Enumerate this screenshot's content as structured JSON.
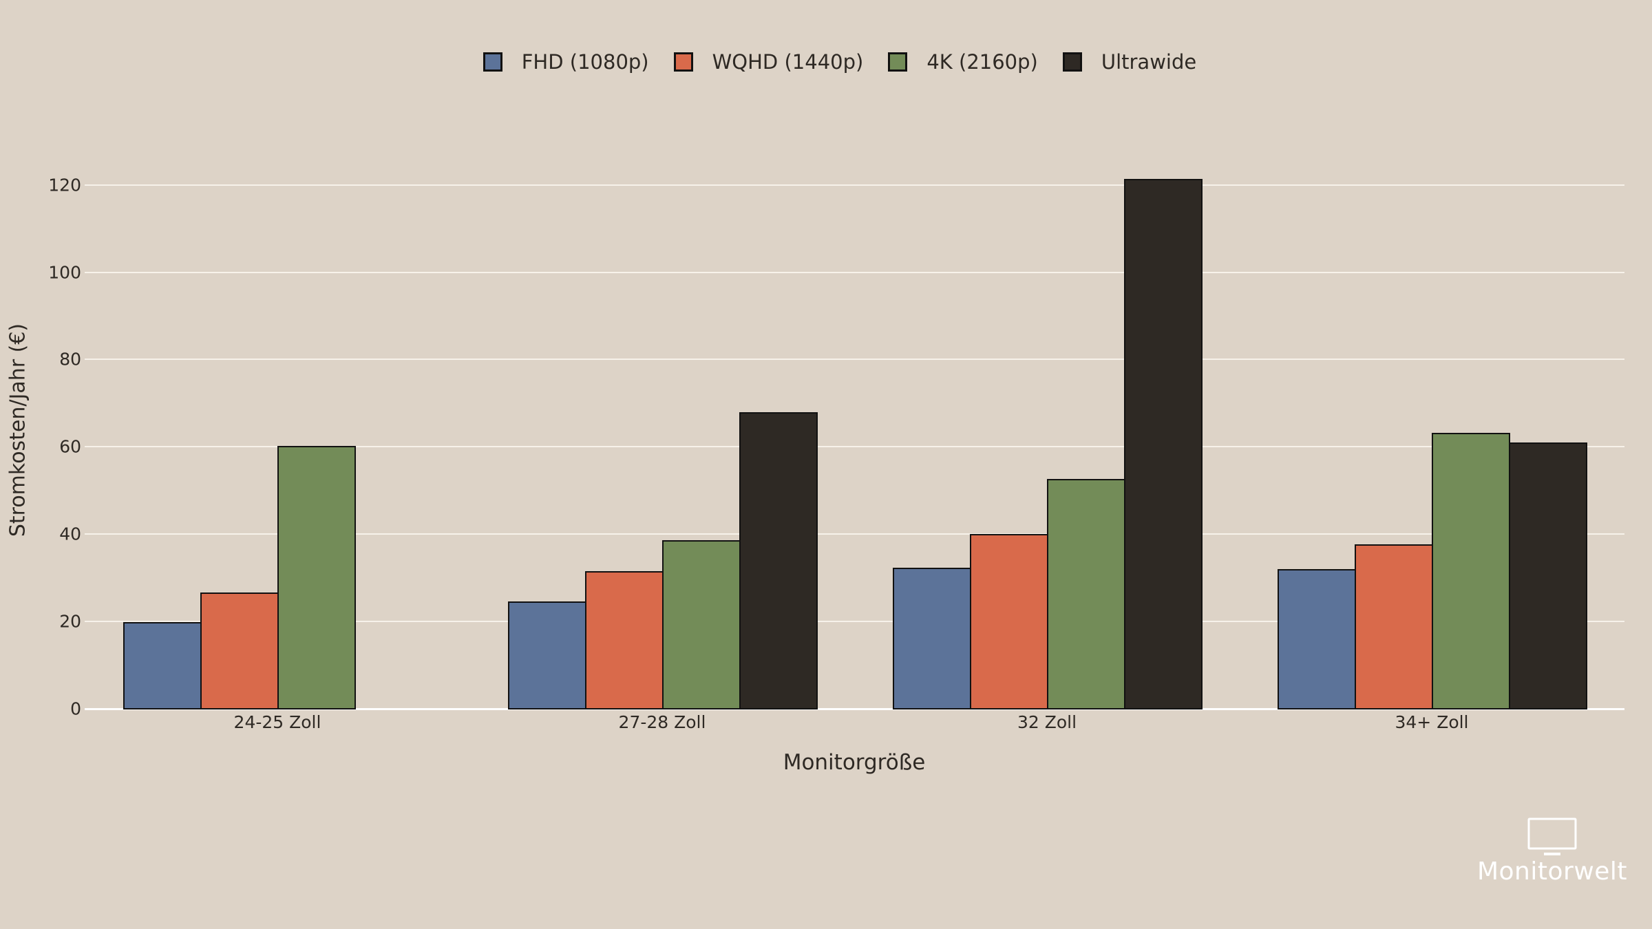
{
  "chart_data": {
    "type": "bar",
    "title": "",
    "xlabel": "Monitorgröße",
    "ylabel": "Stromkosten/Jahr (€)",
    "categories": [
      "24-25 Zoll",
      "27-28 Zoll",
      "32 Zoll",
      "34+ Zoll"
    ],
    "series": [
      {
        "name": "FHD (1080p)",
        "color": "#5c7399",
        "values": [
          19.8,
          24.6,
          32.3,
          32.0
        ]
      },
      {
        "name": "WQHD (1440p)",
        "color": "#d96a4b",
        "values": [
          26.6,
          31.5,
          40.0,
          37.6
        ]
      },
      {
        "name": "4K (2160p)",
        "color": "#738c58",
        "values": [
          60.2,
          38.6,
          52.6,
          63.2
        ]
      },
      {
        "name": "Ultrawide",
        "color": "#2e2924",
        "values": [
          null,
          68.0,
          121.4,
          61.0
        ]
      }
    ],
    "ylim": [
      0,
      125
    ],
    "yticks": [
      0,
      20,
      40,
      60,
      80,
      100,
      120
    ],
    "grid": true,
    "legend_position": "top"
  },
  "legend": {
    "items": [
      {
        "label": "FHD (1080p)",
        "color": "#5c7399"
      },
      {
        "label": "WQHD (1440p)",
        "color": "#d96a4b"
      },
      {
        "label": "4K (2160p)",
        "color": "#738c58"
      },
      {
        "label": "Ultrawide",
        "color": "#2e2924"
      }
    ]
  },
  "axes": {
    "y_ticks": [
      "0",
      "20",
      "40",
      "60",
      "80",
      "100",
      "120"
    ],
    "y_title": "Stromkosten/Jahr (€)",
    "x_ticks": [
      "24-25 Zoll",
      "27-28 Zoll",
      "32 Zoll",
      "34+ Zoll"
    ],
    "x_title": "Monitorgröße"
  },
  "brand": {
    "name": "Monitorwelt",
    "icon": "monitor-icon"
  },
  "colors": {
    "background": "#ddd3c7",
    "gridline": "#f7f2ea",
    "text": "#2e2924",
    "bar_outline": "#111111"
  }
}
